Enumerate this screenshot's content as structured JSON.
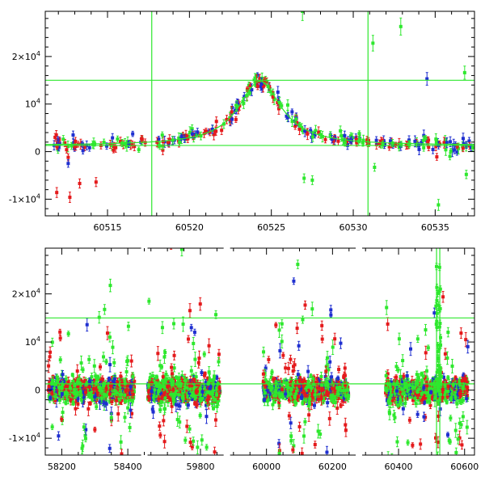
{
  "colors": {
    "red": "#e41a1c",
    "blue": "#1f2fd0",
    "green": "#2ee82e",
    "axis": "#000000",
    "guide": "#2ee82e"
  },
  "chart_data": [
    {
      "type": "scatter",
      "title": "",
      "xlabel": "",
      "ylabel": "",
      "xlim": [
        60511.2,
        60537.4
      ],
      "ylim": [
        -13500,
        29500
      ],
      "x_ticks": [
        "60515",
        "60520",
        "60525",
        "60530",
        "60535"
      ],
      "x_tick_values": [
        60515,
        60520,
        60525,
        60530,
        60535
      ],
      "y_ticks": [
        "-1×10⁴",
        "0",
        "10⁴",
        "2×10⁴"
      ],
      "y_tick_values": [
        -10000,
        0,
        10000,
        20000
      ],
      "guides": {
        "vlines": [
          60517.7,
          60530.9
        ],
        "hlines": [
          1300,
          15000
        ]
      },
      "model_curve": {
        "peak_x": 60524.3,
        "peak_y": 14800,
        "baseline": 1300,
        "width": 1.6
      },
      "series": [
        {
          "color": "red",
          "points": [
            [
              60511.8,
              3000
            ],
            [
              60511.9,
              -8600
            ],
            [
              60512.4,
              1800
            ],
            [
              60512.5,
              400
            ],
            [
              60512.6,
              -1200
            ],
            [
              60512.7,
              -9600
            ],
            [
              60513.0,
              1000
            ],
            [
              60513.3,
              -6700
            ],
            [
              60513.6,
              900
            ],
            [
              60514.3,
              -6400
            ],
            [
              60514.6,
              1300
            ],
            [
              60515.4,
              1200
            ],
            [
              60516.5,
              1500
            ],
            [
              60517.3,
              1900
            ],
            [
              60518.7,
              2000
            ],
            [
              60519.9,
              2700
            ],
            [
              60520.9,
              3800
            ],
            [
              60521.6,
              4300
            ],
            [
              60524.1,
              14800
            ],
            [
              60524.5,
              13800
            ],
            [
              60525.1,
              11500
            ],
            [
              60528.8,
              2200
            ],
            [
              60529.6,
              2100
            ],
            [
              60530.9,
              1800
            ],
            [
              60531.6,
              1700
            ],
            [
              60532.2,
              1000
            ],
            [
              60533.3,
              1300
            ],
            [
              60534.6,
              900
            ],
            [
              60535.1,
              -1100
            ],
            [
              60536.7,
              700
            ],
            [
              60537.1,
              1200
            ]
          ]
        },
        {
          "color": "blue",
          "points": [
            [
              60512.6,
              -2500
            ],
            [
              60512.9,
              3500
            ],
            [
              60513.5,
              200
            ],
            [
              60513.9,
              800
            ],
            [
              60516.3,
              1600
            ],
            [
              60519.7,
              2700
            ],
            [
              60521.4,
              4700
            ],
            [
              60522.6,
              6800
            ],
            [
              60523.8,
              13000
            ],
            [
              60524.4,
              14200
            ],
            [
              60525.4,
              12500
            ],
            [
              60528.7,
              2600
            ],
            [
              60529.9,
              2400
            ],
            [
              60531.9,
              1400
            ],
            [
              60534.0,
              1200
            ],
            [
              60534.5,
              15300
            ],
            [
              60535.2,
              1300
            ],
            [
              60536.9,
              1400
            ],
            [
              60537.2,
              900
            ]
          ]
        },
        {
          "color": "green",
          "points": [
            [
              60512.3,
              2600
            ],
            [
              60512.8,
              1200
            ],
            [
              60514.1,
              1500
            ],
            [
              60515.9,
              1800
            ],
            [
              60518.2,
              1200
            ],
            [
              60519.4,
              2000
            ],
            [
              60520.7,
              3300
            ],
            [
              60522.1,
              5800
            ],
            [
              60522.9,
              9600
            ],
            [
              60523.5,
              11800
            ],
            [
              60524.0,
              15100
            ],
            [
              60524.8,
              13700
            ],
            [
              60525.5,
              10300
            ],
            [
              60526.0,
              9800
            ],
            [
              60526.5,
              6800
            ],
            [
              60526.9,
              29500
            ],
            [
              60527.0,
              -5600
            ],
            [
              60527.5,
              -6000
            ],
            [
              60528.0,
              3600
            ],
            [
              60529.5,
              1900
            ],
            [
              60530.4,
              2600
            ],
            [
              60531.2,
              22800
            ],
            [
              60531.3,
              -3300
            ],
            [
              60531.8,
              1500
            ],
            [
              60532.4,
              1800
            ],
            [
              60532.9,
              26300
            ],
            [
              60533.4,
              1500
            ],
            [
              60534.3,
              800
            ],
            [
              60535.2,
              -11200
            ],
            [
              60535.9,
              -1000
            ],
            [
              60536.8,
              16600
            ],
            [
              60536.9,
              -4800
            ],
            [
              60537.3,
              800
            ]
          ]
        }
      ]
    },
    {
      "type": "scatter",
      "title": "",
      "xlabel": "",
      "ylabel": "",
      "ylim": [
        -13500,
        29500
      ],
      "x_ticks": [
        "58200",
        "58400",
        "59800",
        "60000",
        "60200",
        "60400",
        "60600"
      ],
      "y_ticks": [
        "-1×10⁴",
        "0",
        "10⁴",
        "2×10⁴"
      ],
      "y_tick_values": [
        -10000,
        0,
        10000,
        20000
      ],
      "guides": {
        "hlines": [
          1300,
          15000
        ],
        "vline_x": 60520
      },
      "segments": [
        {
          "xlim": [
            58150,
            58450
          ],
          "ticks": [
            58200,
            58400
          ],
          "data_range": [
            58160,
            58420
          ]
        },
        {
          "xlim": [
            59630,
            59880
          ],
          "ticks": [
            59800
          ],
          "data_range": [
            59640,
            59860
          ]
        },
        {
          "xlim": [
            59880,
            60280
          ],
          "ticks": [
            60000,
            60200
          ],
          "data_range": [
            59990,
            60250
          ]
        },
        {
          "xlim": [
            60280,
            60630
          ],
          "ticks": [
            60400,
            60600
          ],
          "data_range": [
            60360,
            60610
          ]
        }
      ],
      "scatter_seed": 7
    }
  ]
}
